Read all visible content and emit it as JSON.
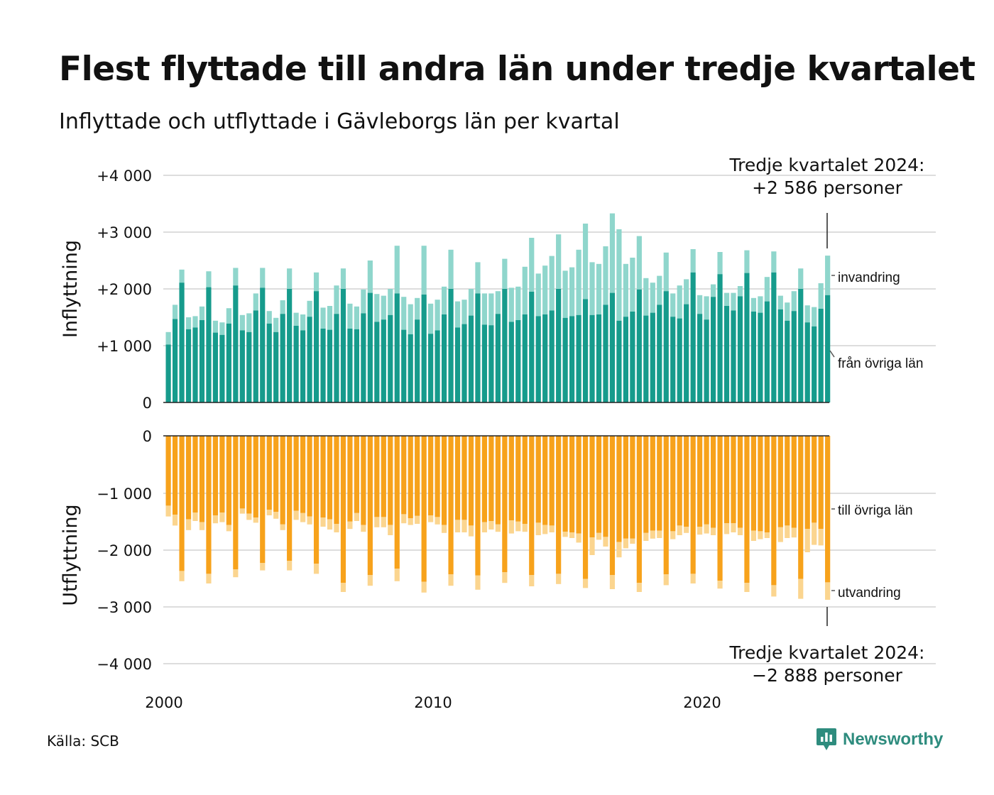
{
  "title": "Flest flyttade till andra län under tredje kvartalet",
  "subtitle": "Inflyttade och utflyttade i Gävleborgs län per kvartal",
  "source": "Källa: SCB",
  "brand": "Newsworthy",
  "colors": {
    "fran_ovriga_lan": "#169b8c",
    "invandring": "#8fd6cc",
    "till_ovriga_lan": "#f7a21b",
    "utvandring": "#fbd58f",
    "grid": "#dddddd",
    "brand": "#2e8c7e"
  },
  "chart_data": {
    "type": "bar",
    "stacked": true,
    "diverging": true,
    "x_start": "2000 Q1",
    "x_end": "2024 Q3",
    "x_ticks": [
      "2000",
      "2010",
      "2020"
    ],
    "ylim": [
      -4000,
      4000
    ],
    "panels": [
      {
        "title": "Inflyttning",
        "y_ticks": [
          "+4 000",
          "+3 000",
          "+2 000",
          "+1 000",
          "0"
        ],
        "series": [
          {
            "name": "från övriga län",
            "values": [
              1020,
              1470,
              2110,
              1290,
              1320,
              1450,
              2030,
              1230,
              1190,
              1390,
              2060,
              1270,
              1240,
              1620,
              2020,
              1390,
              1240,
              1560,
              2000,
              1350,
              1270,
              1510,
              1960,
              1300,
              1280,
              1560,
              2000,
              1300,
              1290,
              1570,
              1930,
              1420,
              1460,
              1540,
              1920,
              1280,
              1200,
              1460,
              1900,
              1210,
              1270,
              1550,
              2000,
              1320,
              1380,
              1530,
              1920,
              1370,
              1360,
              1560,
              2000,
              1420,
              1450,
              1550,
              1950,
              1520,
              1550,
              1620,
              2000,
              1490,
              1520,
              1540,
              1820,
              1540,
              1550,
              1720,
              1930,
              1440,
              1510,
              1600,
              1990,
              1530,
              1580,
              1720,
              1960,
              1510,
              1480,
              1730,
              2290,
              1560,
              1460,
              1860,
              2260,
              1700,
              1620,
              1870,
              2280,
              1600,
              1580,
              1780,
              2290,
              1640,
              1440,
              1610,
              2000,
              1410,
              1340,
              1650,
              1890
            ],
            "total_values": [
              1240,
              1720,
              2340,
              1500,
              1520,
              1690,
              2310,
              1440,
              1410,
              1660,
              2370,
              1540,
              1570,
              1920,
              2370,
              1610,
              1490,
              1800,
              2360,
              1580,
              1550,
              1790,
              2290,
              1670,
              1700,
              2060,
              2360,
              1740,
              1690,
              1990,
              2500,
              1910,
              1880,
              2000,
              2760,
              1860,
              1730,
              1840,
              2760,
              1740,
              1810,
              2040,
              2690,
              1780,
              1810,
              2000,
              2470,
              1920,
              1920,
              1960,
              2530,
              2020,
              2040,
              2390,
              2900,
              2270,
              2410,
              2580,
              2960,
              2320,
              2380,
              2690,
              3150,
              2470,
              2440,
              2750,
              3330,
              3050,
              2440,
              2550,
              2930,
              2190,
              2110,
              2230,
              2640,
              1920,
              2060,
              2170,
              2700,
              1890,
              1870,
              2080,
              2650,
              1930,
              1930,
              2050,
              2680,
              1840,
              1870,
              2210,
              2660,
              1880,
              1760,
              1960,
              2360,
              1710,
              1680,
              2100,
              2586
            ]
          },
          {
            "name": "invandring"
          }
        ],
        "annotation": [
          "Tredje kvartalet 2024:",
          "+2 586 personer"
        ]
      },
      {
        "title": "Utflyttning",
        "y_ticks": [
          "0",
          "−1 000",
          "−2 000",
          "−3 000",
          "−4 000"
        ],
        "series": [
          {
            "name": "till övriga län",
            "values": [
              -1230,
              -1390,
              -2380,
              -1470,
              -1350,
              -1520,
              -2430,
              -1400,
              -1350,
              -1570,
              -2350,
              -1280,
              -1370,
              -1440,
              -2240,
              -1300,
              -1340,
              -1560,
              -2200,
              -1320,
              -1360,
              -1420,
              -2250,
              -1440,
              -1470,
              -1550,
              -2590,
              -1510,
              -1360,
              -1570,
              -2450,
              -1430,
              -1430,
              -1570,
              -2340,
              -1380,
              -1450,
              -1410,
              -2570,
              -1400,
              -1430,
              -1570,
              -2440,
              -1480,
              -1480,
              -1580,
              -2460,
              -1520,
              -1500,
              -1560,
              -2400,
              -1490,
              -1510,
              -1550,
              -2450,
              -1530,
              -1570,
              -1580,
              -2430,
              -1690,
              -1700,
              -1720,
              -2520,
              -1790,
              -1710,
              -1780,
              -2450,
              -1870,
              -1810,
              -1810,
              -2590,
              -1710,
              -1670,
              -1670,
              -2440,
              -1680,
              -1580,
              -1600,
              -2430,
              -1600,
              -1560,
              -1620,
              -2550,
              -1540,
              -1540,
              -1620,
              -2590,
              -1670,
              -1680,
              -1700,
              -2630,
              -1610,
              -1580,
              -1620,
              -2520,
              -1640,
              -1530,
              -1640,
              -2580
            ],
            "total_values": [
              -1420,
              -1580,
              -2560,
              -1660,
              -1500,
              -1660,
              -2600,
              -1540,
              -1520,
              -1680,
              -2490,
              -1370,
              -1480,
              -1530,
              -2370,
              -1400,
              -1460,
              -1660,
              -2370,
              -1480,
              -1520,
              -1560,
              -2430,
              -1600,
              -1650,
              -1700,
              -2750,
              -1640,
              -1500,
              -1690,
              -2640,
              -1610,
              -1610,
              -1750,
              -2560,
              -1540,
              -1570,
              -1550,
              -2760,
              -1520,
              -1560,
              -1710,
              -2640,
              -1700,
              -1700,
              -1770,
              -2710,
              -1700,
              -1650,
              -1690,
              -2590,
              -1720,
              -1680,
              -1690,
              -2650,
              -1750,
              -1730,
              -1700,
              -2610,
              -1780,
              -1800,
              -1880,
              -2680,
              -2100,
              -1830,
              -1950,
              -2700,
              -2140,
              -1980,
              -1900,
              -2750,
              -1850,
              -1810,
              -1800,
              -2630,
              -1820,
              -1750,
              -1710,
              -2600,
              -1740,
              -1720,
              -1750,
              -2690,
              -1730,
              -1700,
              -1750,
              -2750,
              -1850,
              -1820,
              -1800,
              -2830,
              -1870,
              -1800,
              -1790,
              -2870,
              -2050,
              -1920,
              -1930,
              -2888
            ]
          },
          {
            "name": "utvandring"
          }
        ],
        "annotation": [
          "Tredje kvartalet 2024:",
          "−2 888 personer"
        ]
      }
    ]
  }
}
